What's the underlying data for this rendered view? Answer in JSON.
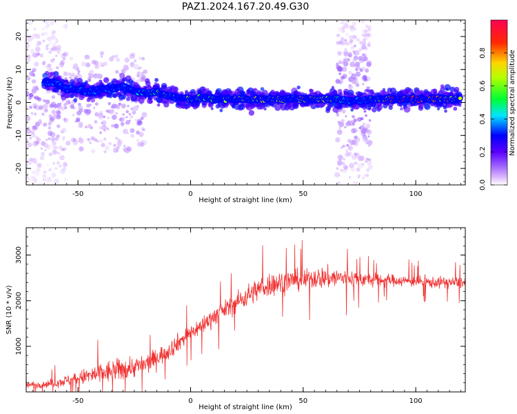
{
  "figure": {
    "title": "PAZ1.2024.167.20.49.G30"
  },
  "chart_data": [
    {
      "type": "heatmap",
      "title": "PAZ1.2024.167.20.49.G30",
      "xlabel": "Height of straight line (km)",
      "ylabel": "Frequency (Hz)",
      "xlim": [
        -73,
        122
      ],
      "ylim": [
        -25,
        25
      ],
      "xticks": [
        -50,
        0,
        50,
        100
      ],
      "yticks": [
        -20,
        -10,
        0,
        10,
        20
      ],
      "colorbar": {
        "label": "Normalized spectral amplitude",
        "range": [
          0.0,
          1.0
        ],
        "ticks": [
          0.0,
          0.2,
          0.4,
          0.6,
          0.8
        ],
        "tick_labels": [
          "0.0",
          "0.2",
          "0.4",
          "0.6",
          "0.8"
        ],
        "colormap": [
          "#ffffff",
          "#d9b3ff",
          "#9a5cff",
          "#5a00ff",
          "#0000ff",
          "#00e5ff",
          "#00ff33",
          "#b4ff00",
          "#ffd400",
          "#ff2a00",
          "#ff0055"
        ]
      },
      "ridge": [
        {
          "x": -65,
          "y": 6,
          "amp": 0.5
        },
        {
          "x": -60,
          "y": 6,
          "amp": 0.4
        },
        {
          "x": -55,
          "y": 4,
          "amp": 0.4
        },
        {
          "x": -50,
          "y": 4,
          "amp": 0.45
        },
        {
          "x": -45,
          "y": 3,
          "amp": 0.4
        },
        {
          "x": -40,
          "y": 4,
          "amp": 0.35
        },
        {
          "x": -35,
          "y": 4,
          "amp": 0.4
        },
        {
          "x": -30,
          "y": 5,
          "amp": 0.45
        },
        {
          "x": -25,
          "y": 3.5,
          "amp": 0.45
        },
        {
          "x": -20,
          "y": 3,
          "amp": 0.5
        },
        {
          "x": -15,
          "y": 3,
          "amp": 0.55
        },
        {
          "x": -10,
          "y": 2,
          "amp": 0.55
        },
        {
          "x": -5,
          "y": 1.5,
          "amp": 0.6
        },
        {
          "x": 0,
          "y": 1,
          "amp": 0.65
        },
        {
          "x": 5,
          "y": 1.5,
          "amp": 0.6
        },
        {
          "x": 10,
          "y": 1,
          "amp": 0.6
        },
        {
          "x": 15,
          "y": 1,
          "amp": 0.65
        },
        {
          "x": 20,
          "y": 1,
          "amp": 0.7
        },
        {
          "x": 25,
          "y": 1,
          "amp": 0.65
        },
        {
          "x": 30,
          "y": 1,
          "amp": 0.7
        },
        {
          "x": 35,
          "y": 1,
          "amp": 0.7
        },
        {
          "x": 40,
          "y": 1,
          "amp": 0.75
        },
        {
          "x": 45,
          "y": 1,
          "amp": 0.7
        },
        {
          "x": 50,
          "y": 1,
          "amp": 0.75
        },
        {
          "x": 55,
          "y": 1,
          "amp": 0.75
        },
        {
          "x": 60,
          "y": 1,
          "amp": 0.7
        },
        {
          "x": 65,
          "y": 1,
          "amp": 0.6
        },
        {
          "x": 70,
          "y": 0.5,
          "amp": 0.4
        },
        {
          "x": 75,
          "y": 0.5,
          "amp": 0.4
        },
        {
          "x": 80,
          "y": 1,
          "amp": 0.6
        },
        {
          "x": 85,
          "y": 1,
          "amp": 0.7
        },
        {
          "x": 90,
          "y": 1,
          "amp": 0.85
        },
        {
          "x": 95,
          "y": 1,
          "amp": 0.9
        },
        {
          "x": 100,
          "y": 1,
          "amp": 0.9
        },
        {
          "x": 105,
          "y": 1,
          "amp": 0.85
        },
        {
          "x": 110,
          "y": 1,
          "amp": 0.8
        },
        {
          "x": 115,
          "y": 1,
          "amp": 0.75
        },
        {
          "x": 120,
          "y": 1,
          "amp": 0.7
        }
      ],
      "scatter_regions": [
        {
          "x": [
            -73,
            -55
          ],
          "y": [
            -25,
            25
          ],
          "amp": 0.15
        },
        {
          "x": [
            -55,
            -20
          ],
          "y": [
            -15,
            15
          ],
          "amp": 0.15
        },
        {
          "x": [
            65,
            80
          ],
          "y": [
            -25,
            25
          ],
          "amp": 0.2
        }
      ]
    },
    {
      "type": "line",
      "title": "",
      "xlabel": "Height of straight line (km)",
      "ylabel": "SNR (10 * v/v)",
      "xlim": [
        -73,
        122
      ],
      "ylim": [
        0,
        3600
      ],
      "xticks": [
        -50,
        0,
        50,
        100
      ],
      "yticks": [
        1000,
        2000,
        3000
      ],
      "color": "#f03030",
      "series": [
        {
          "x": [
            -73,
            -65,
            -60,
            -55,
            -50,
            -45,
            -40,
            -35,
            -30,
            -25,
            -20,
            -15,
            -10,
            -5,
            0,
            5,
            10,
            15,
            20,
            25,
            30,
            35,
            40,
            45,
            50,
            55,
            60,
            65,
            70,
            75,
            80,
            85,
            90,
            95,
            100,
            105,
            110,
            115,
            122
          ],
          "values": [
            150,
            170,
            200,
            250,
            300,
            350,
            400,
            450,
            500,
            550,
            600,
            750,
            900,
            1100,
            1300,
            1450,
            1650,
            1800,
            1950,
            2100,
            2250,
            2350,
            2400,
            2450,
            2450,
            2500,
            2500,
            2500,
            2500,
            2480,
            2450,
            2450,
            2450,
            2430,
            2430,
            2400,
            2400,
            2400,
            2400
          ],
          "spread": [
            150,
            150,
            200,
            250,
            300,
            400,
            500,
            500,
            500,
            450,
            450,
            400,
            400,
            400,
            350,
            400,
            400,
            400,
            450,
            500,
            500,
            550,
            500,
            450,
            450,
            450,
            500,
            450,
            400,
            350,
            300,
            300,
            250,
            250,
            250,
            250,
            250,
            250,
            250
          ]
        }
      ]
    }
  ]
}
